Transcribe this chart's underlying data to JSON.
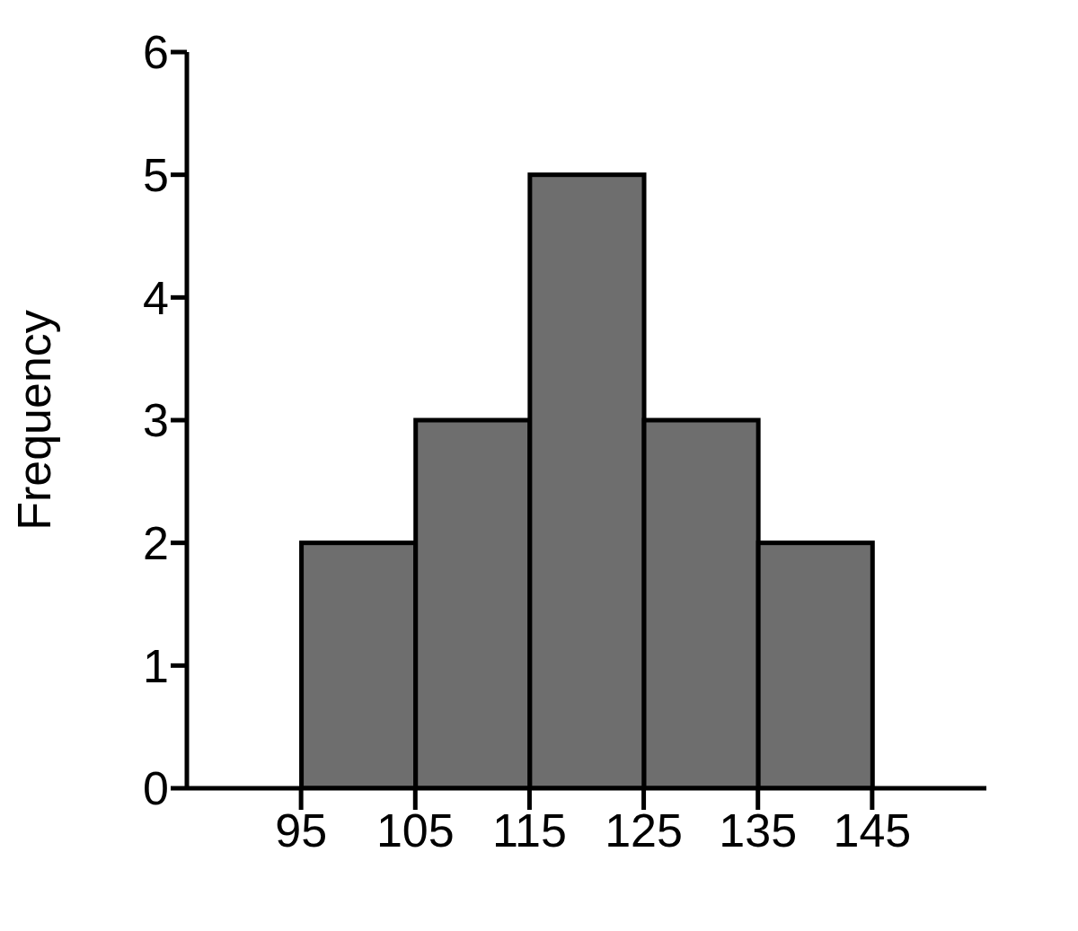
{
  "chart_data": {
    "type": "histogram",
    "ylabel": "Frequency",
    "bins": [
      95,
      105,
      115,
      125,
      135,
      145
    ],
    "values": [
      2,
      3,
      5,
      3,
      2
    ],
    "color": "#6e6e6e",
    "xlim": [
      85,
      155
    ],
    "xticks": [
      95,
      105,
      115,
      125,
      135,
      145
    ],
    "ylim": [
      0,
      6
    ],
    "yticks": [
      0,
      1,
      2,
      3,
      4,
      5,
      6
    ],
    "grid": false
  }
}
